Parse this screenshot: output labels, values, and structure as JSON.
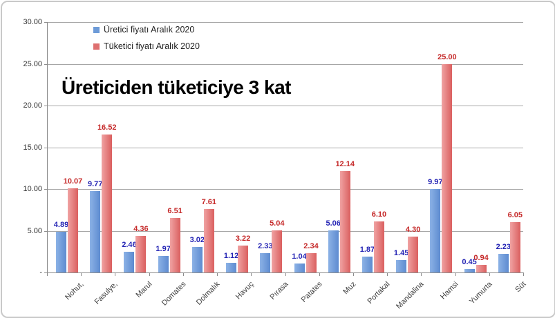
{
  "chart_data": {
    "type": "bar",
    "title": "Üreticiden tüketiciye 3 kat",
    "categories": [
      "Nohut,",
      "Fasulye,",
      "Marul",
      "Domates",
      "Dolmalık",
      "Havuç",
      "Pırasa",
      "Patates",
      "Muz",
      "Portakal",
      "Mandalina",
      "Hamsi",
      "Yumurta",
      "Süt"
    ],
    "series": [
      {
        "name": "Üretici fiyatı Aralık 2020",
        "values": [
          4.89,
          9.77,
          2.46,
          1.97,
          3.02,
          1.12,
          2.33,
          1.04,
          5.06,
          1.87,
          1.45,
          9.97,
          0.45,
          2.23
        ],
        "color": "#6d9bd8",
        "color_left": "#8cb2e6",
        "color_right": "#5d8bd0",
        "label_color": "#2424b4"
      },
      {
        "name": "Tüketici fiyatı Aralık 2020",
        "values": [
          10.07,
          16.52,
          4.36,
          6.51,
          7.61,
          3.22,
          5.04,
          2.34,
          12.14,
          6.1,
          4.3,
          25.0,
          0.94,
          6.05
        ],
        "color": "#de7070",
        "color_left": "#f0a3a3",
        "color_right": "#da5f5f",
        "label_color": "#c52828"
      }
    ],
    "xlabel": "",
    "ylabel": "",
    "ylim": [
      0,
      30
    ],
    "y_tick_step": 5,
    "y_tick_labels": [
      "-",
      "5.00",
      "10.00",
      "15.00",
      "20.00",
      "25.00",
      "30.00"
    ],
    "grid": true,
    "legend_position": "top-left-inside"
  }
}
